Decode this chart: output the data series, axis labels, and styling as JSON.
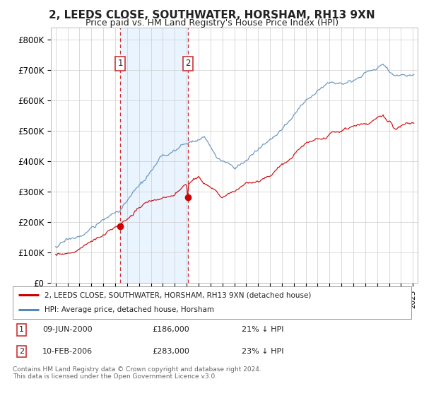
{
  "title": "2, LEEDS CLOSE, SOUTHWATER, HORSHAM, RH13 9XN",
  "subtitle": "Price paid vs. HM Land Registry's House Price Index (HPI)",
  "ylabel_ticks": [
    "£0",
    "£100K",
    "£200K",
    "£300K",
    "£400K",
    "£500K",
    "£600K",
    "£700K",
    "£800K"
  ],
  "ytick_values": [
    0,
    100000,
    200000,
    300000,
    400000,
    500000,
    600000,
    700000,
    800000
  ],
  "ylim": [
    0,
    840000
  ],
  "xlim_start": 1994.6,
  "xlim_end": 2025.4,
  "sale1_date": 2000.44,
  "sale1_price": 186000,
  "sale1_label": "1",
  "sale2_date": 2006.11,
  "sale2_price": 283000,
  "sale2_label": "2",
  "legend_line1": "2, LEEDS CLOSE, SOUTHWATER, HORSHAM, RH13 9XN (detached house)",
  "legend_line2": "HPI: Average price, detached house, Horsham",
  "footer": "Contains HM Land Registry data © Crown copyright and database right 2024.\nThis data is licensed under the Open Government Licence v3.0.",
  "line_color_red": "#cc0000",
  "line_color_blue": "#5588bb",
  "vline_color": "#cc3333",
  "shade_color": "#ddeeff",
  "background_color": "#ffffff",
  "grid_color": "#cccccc",
  "title_fontsize": 11,
  "subtitle_fontsize": 9
}
